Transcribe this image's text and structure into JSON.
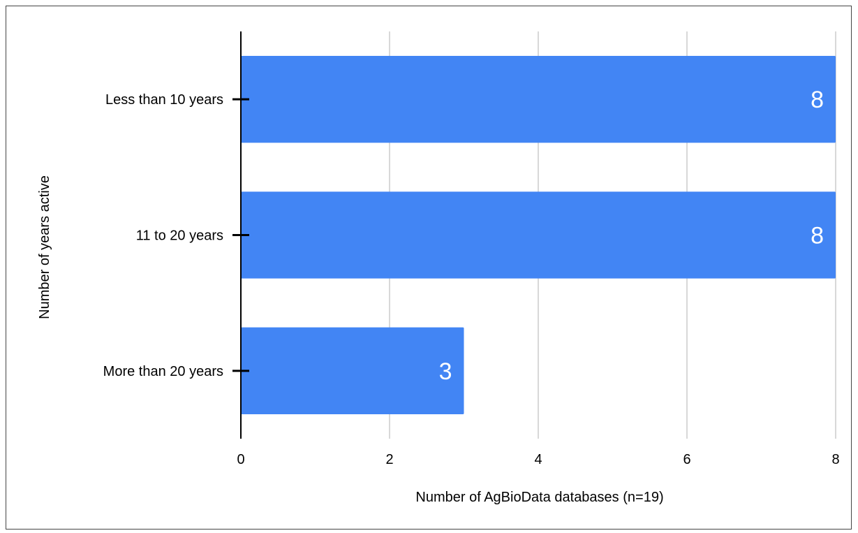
{
  "chart_data": {
    "type": "bar",
    "orientation": "horizontal",
    "title": "",
    "xlabel": "Number of AgBioData databases (n=19)",
    "ylabel": "Number of years active",
    "categories": [
      "Less than 10 years",
      "11 to 20 years",
      "More than 20 years"
    ],
    "values": [
      8,
      8,
      3
    ],
    "data_labels": [
      "8",
      "8",
      "3"
    ],
    "xlim": [
      0,
      8
    ],
    "xticks": [
      0,
      2,
      4,
      6,
      8
    ],
    "grid": "vertical",
    "legend": "none",
    "colors": {
      "bar": "#4285f4",
      "grid": "#cccccc",
      "axis": "#000000",
      "label": "#ffffff"
    }
  }
}
